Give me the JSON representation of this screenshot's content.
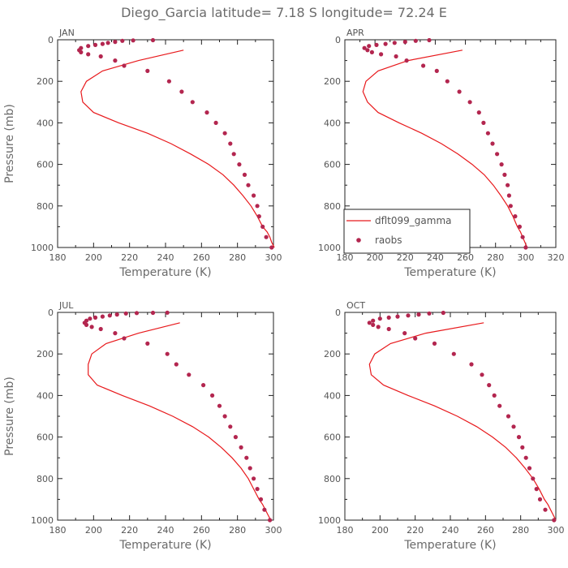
{
  "title": "Diego_Garcia   latitude= 7.18 S longitude= 72.24 E",
  "colors": {
    "model": "#e8191c",
    "obs": "#b3264f",
    "axis": "#222222",
    "text": "#6b6b6b"
  },
  "legend": {
    "model_label": "dflt099_gamma",
    "obs_label": "raobs"
  },
  "chart_data": [
    {
      "type": "line",
      "month": "JAN",
      "xlabel": "Temperature (K)",
      "ylabel": "Pressure (mb)",
      "xlim": [
        180,
        300
      ],
      "ylim": [
        1000,
        0
      ],
      "xticks": [
        180,
        200,
        220,
        240,
        260,
        280,
        300
      ],
      "yticks": [
        0,
        200,
        400,
        600,
        800,
        1000
      ],
      "model": {
        "name": "dflt099_gamma",
        "x": [
          300.5,
          299,
          298,
          296.5,
          294,
          291,
          287.5,
          283,
          278,
          272,
          264,
          254,
          243,
          230,
          214,
          200,
          194,
          193,
          196,
          205,
          225,
          250
        ],
        "y": [
          1000,
          975,
          950,
          925,
          900,
          850,
          800,
          750,
          700,
          650,
          600,
          550,
          500,
          450,
          400,
          350,
          300,
          250,
          200,
          150,
          100,
          50
        ]
      },
      "raobs": {
        "name": "raobs",
        "x": [
          299,
          296,
          294,
          292,
          291,
          289,
          286,
          284,
          281,
          278,
          276,
          273,
          268,
          263,
          255,
          249,
          242,
          230,
          217,
          212,
          204,
          197,
          193,
          192,
          193,
          197,
          201,
          205,
          208,
          212,
          216,
          222,
          233
        ],
        "y": [
          1000,
          950,
          900,
          850,
          800,
          750,
          700,
          650,
          600,
          550,
          500,
          450,
          400,
          350,
          300,
          250,
          200,
          150,
          125,
          100,
          80,
          70,
          60,
          50,
          40,
          30,
          25,
          20,
          15,
          10,
          5,
          3,
          2
        ]
      },
      "show_legend": false
    },
    {
      "type": "line",
      "month": "APR",
      "xlabel": "Temperature (K)",
      "ylabel": "",
      "xlim": [
        180,
        320
      ],
      "ylim": [
        1000,
        0
      ],
      "xticks": [
        180,
        200,
        220,
        240,
        260,
        280,
        300,
        320
      ],
      "yticks": [
        0,
        200,
        400,
        600,
        800,
        1000
      ],
      "model": {
        "name": "dflt099_gamma",
        "x": [
          301,
          299.5,
          298,
          296.5,
          294.5,
          291.5,
          288,
          283.5,
          278.5,
          272.5,
          264.5,
          255,
          244,
          231,
          216,
          202,
          195,
          192,
          194,
          202,
          222,
          258
        ],
        "y": [
          1000,
          975,
          950,
          925,
          900,
          850,
          800,
          750,
          700,
          650,
          600,
          550,
          500,
          450,
          400,
          350,
          300,
          250,
          200,
          150,
          100,
          50
        ]
      },
      "raobs": {
        "name": "raobs",
        "x": [
          300,
          298,
          296,
          293,
          290,
          289,
          288,
          286,
          284,
          281,
          278,
          275,
          272,
          269,
          263,
          256,
          248,
          241,
          232,
          221,
          214,
          204,
          198,
          195,
          193,
          196,
          201,
          207,
          213,
          220,
          227,
          236
        ],
        "y": [
          1000,
          950,
          900,
          850,
          800,
          750,
          700,
          650,
          600,
          550,
          500,
          450,
          400,
          350,
          300,
          250,
          200,
          150,
          125,
          100,
          80,
          70,
          60,
          50,
          40,
          30,
          25,
          20,
          15,
          10,
          5,
          2
        ]
      },
      "show_legend": true
    },
    {
      "type": "line",
      "month": "JUL",
      "xlabel": "Temperature (K)",
      "ylabel": "Pressure (mb)",
      "xlim": [
        180,
        300
      ],
      "ylim": [
        1000,
        0
      ],
      "xticks": [
        180,
        200,
        220,
        240,
        260,
        280,
        300
      ],
      "yticks": [
        0,
        200,
        400,
        600,
        800,
        1000
      ],
      "model": {
        "name": "dflt099_gamma",
        "x": [
          298.5,
          297,
          295.5,
          294,
          292,
          289,
          286,
          282,
          277,
          271,
          264,
          255,
          244,
          231,
          216,
          202,
          197,
          197,
          199,
          207,
          225,
          248
        ],
        "y": [
          1000,
          975,
          950,
          925,
          900,
          850,
          800,
          750,
          700,
          650,
          600,
          550,
          500,
          450,
          400,
          350,
          300,
          250,
          200,
          150,
          100,
          50
        ]
      },
      "raobs": {
        "name": "raobs",
        "x": [
          298,
          295,
          293,
          291,
          289,
          287,
          285,
          282,
          279,
          276,
          273,
          270,
          266,
          261,
          253,
          246,
          241,
          230,
          217,
          212,
          204,
          199,
          196,
          195,
          196,
          198,
          201,
          205,
          209,
          213,
          218,
          224,
          233,
          241
        ],
        "y": [
          1000,
          950,
          900,
          850,
          800,
          750,
          700,
          650,
          600,
          550,
          500,
          450,
          400,
          350,
          300,
          250,
          200,
          150,
          125,
          100,
          80,
          70,
          60,
          50,
          40,
          30,
          25,
          20,
          15,
          10,
          5,
          3,
          2,
          1
        ]
      },
      "show_legend": false
    },
    {
      "type": "line",
      "month": "OCT",
      "xlabel": "Temperature (K)",
      "ylabel": "",
      "xlim": [
        180,
        300
      ],
      "ylim": [
        1000,
        0
      ],
      "xticks": [
        180,
        200,
        220,
        240,
        260,
        280,
        300
      ],
      "yticks": [
        0,
        200,
        400,
        600,
        800,
        1000
      ],
      "model": {
        "name": "dflt099_gamma",
        "x": [
          300,
          298.5,
          297,
          295.5,
          293.5,
          290.5,
          287,
          282.5,
          277.5,
          271.5,
          264,
          255,
          244,
          231,
          216,
          202,
          195,
          194,
          197,
          206,
          226,
          259
        ],
        "y": [
          1000,
          975,
          950,
          925,
          900,
          850,
          800,
          750,
          700,
          650,
          600,
          550,
          500,
          450,
          400,
          350,
          300,
          250,
          200,
          150,
          100,
          50
        ]
      },
      "raobs": {
        "name": "raobs",
        "x": [
          299,
          294,
          291,
          289,
          287,
          285,
          283,
          281,
          279,
          276,
          273,
          268,
          265,
          262,
          258,
          252,
          242,
          231,
          220,
          214,
          205,
          199,
          196,
          194,
          196,
          200,
          205,
          210,
          216,
          222,
          228,
          236
        ],
        "y": [
          1000,
          950,
          900,
          850,
          800,
          750,
          700,
          650,
          600,
          550,
          500,
          450,
          400,
          350,
          300,
          250,
          200,
          150,
          125,
          100,
          80,
          70,
          60,
          50,
          40,
          30,
          25,
          20,
          15,
          10,
          5,
          2
        ]
      },
      "show_legend": false
    }
  ]
}
